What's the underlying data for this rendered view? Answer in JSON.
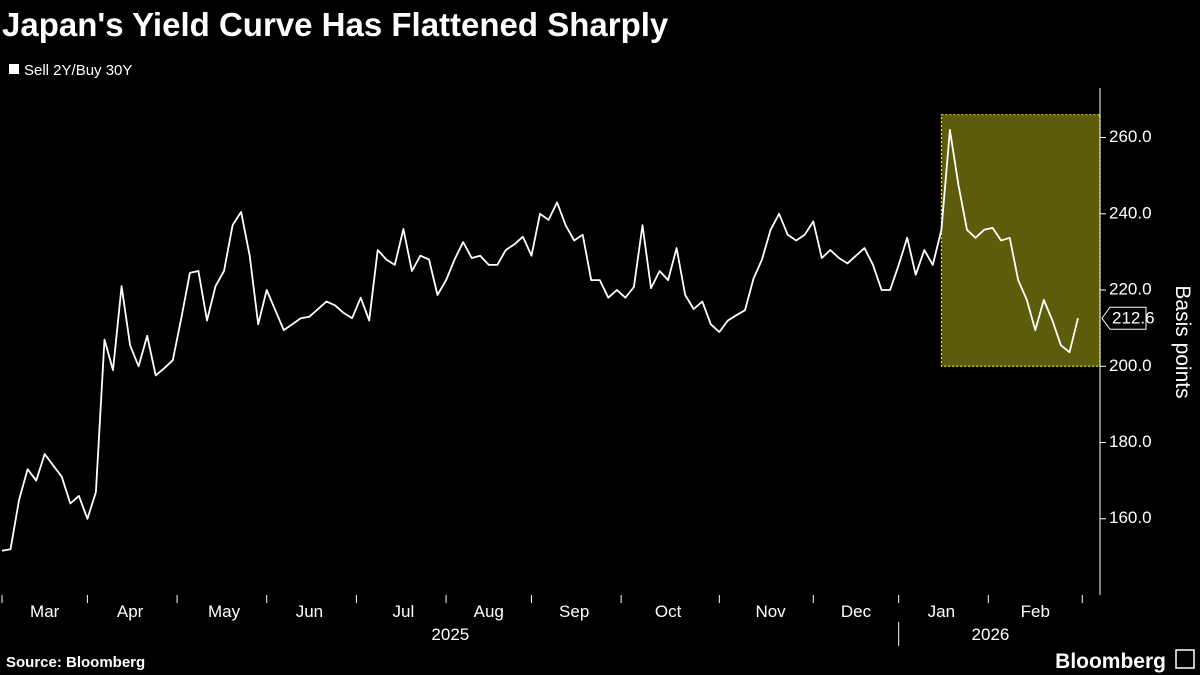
{
  "chart_data": {
    "type": "line",
    "title": "Japan's Yield Curve Has Flattened Sharply",
    "y_label": "Basis points",
    "source": "Source: Bloomberg",
    "brand": "Bloomberg",
    "categories": [
      null,
      null,
      null,
      null,
      null,
      "Mar",
      null,
      null,
      null,
      null,
      null,
      null,
      null,
      null,
      null,
      "Apr",
      null,
      null,
      null,
      null,
      null,
      null,
      null,
      null,
      null,
      null,
      "May",
      null,
      null,
      null,
      null,
      null,
      null,
      null,
      null,
      null,
      "Jun",
      null,
      null,
      null,
      null,
      null,
      null,
      null,
      null,
      null,
      null,
      "Jul",
      null,
      null,
      null,
      null,
      null,
      null,
      null,
      null,
      null,
      "Aug",
      null,
      null,
      null,
      null,
      null,
      null,
      null,
      null,
      null,
      "Sep",
      null,
      null,
      null,
      null,
      null,
      null,
      null,
      null,
      null,
      null,
      "Oct",
      null,
      null,
      null,
      null,
      null,
      null,
      null,
      null,
      null,
      null,
      null,
      "Nov",
      null,
      null,
      null,
      null,
      null,
      null,
      null,
      null,
      null,
      "Dec",
      null,
      null,
      null,
      null,
      null,
      null,
      null,
      null,
      null,
      "Jan",
      null,
      null,
      null,
      null,
      null,
      null,
      null,
      null,
      null,
      null,
      "Feb",
      null,
      null,
      null,
      null,
      null
    ],
    "year_labels": [
      {
        "label": "2025",
        "from": "Mar"
      },
      {
        "label": "2026",
        "from": "Jan"
      }
    ],
    "series": [
      {
        "name": "Sell 2Y/Buy 30Y",
        "color": "#ffffff",
        "values": [
          151.6,
          152,
          165,
          173,
          170,
          177,
          174,
          171,
          164,
          166,
          160,
          167,
          207,
          199,
          221,
          205.5,
          200,
          208,
          197.6,
          199.5,
          201.6,
          212.6,
          224.5,
          225,
          212,
          221,
          225,
          237,
          240.5,
          229,
          211,
          220,
          214.7,
          209.5,
          211,
          212.6,
          213,
          215,
          217,
          216,
          214,
          212.6,
          218,
          212,
          230.5,
          228,
          226.6,
          236,
          225,
          229,
          228,
          218.7,
          222.6,
          228,
          232.6,
          228.4,
          229,
          226.6,
          226.6,
          230.5,
          232,
          234,
          229,
          240,
          238.4,
          243,
          237,
          233,
          234.5,
          222.6,
          222.6,
          218,
          220,
          218,
          220.8,
          237,
          220.5,
          225,
          222.6,
          231,
          218.7,
          215,
          217,
          211,
          209,
          212,
          213.4,
          214.7,
          223,
          228,
          235.8,
          240,
          234.5,
          233,
          234.5,
          238,
          228.4,
          230.5,
          228.4,
          227,
          229,
          231,
          226.6,
          220,
          220,
          226.6,
          233.7,
          224,
          230.5,
          226.6,
          235.8,
          262,
          247.6,
          235.8,
          233.7,
          235.8,
          236.3,
          233,
          233.7,
          222.6,
          217.4,
          209.5,
          217.4,
          212,
          205.5,
          203.7,
          212.6
        ]
      }
    ],
    "highlight": {
      "from": "Jan",
      "ylim": [
        200,
        266
      ],
      "color": "#e6e619"
    },
    "ylim": [
      140,
      273
    ],
    "yticks": [
      {
        "value": 160,
        "label": "160.0"
      },
      {
        "value": 180,
        "label": "180.0"
      },
      {
        "value": 200,
        "label": "200.0"
      },
      {
        "value": 220,
        "label": "220.0"
      },
      {
        "value": 240,
        "label": "240.0"
      },
      {
        "value": 260,
        "label": "260.0"
      }
    ],
    "grid": false
  }
}
